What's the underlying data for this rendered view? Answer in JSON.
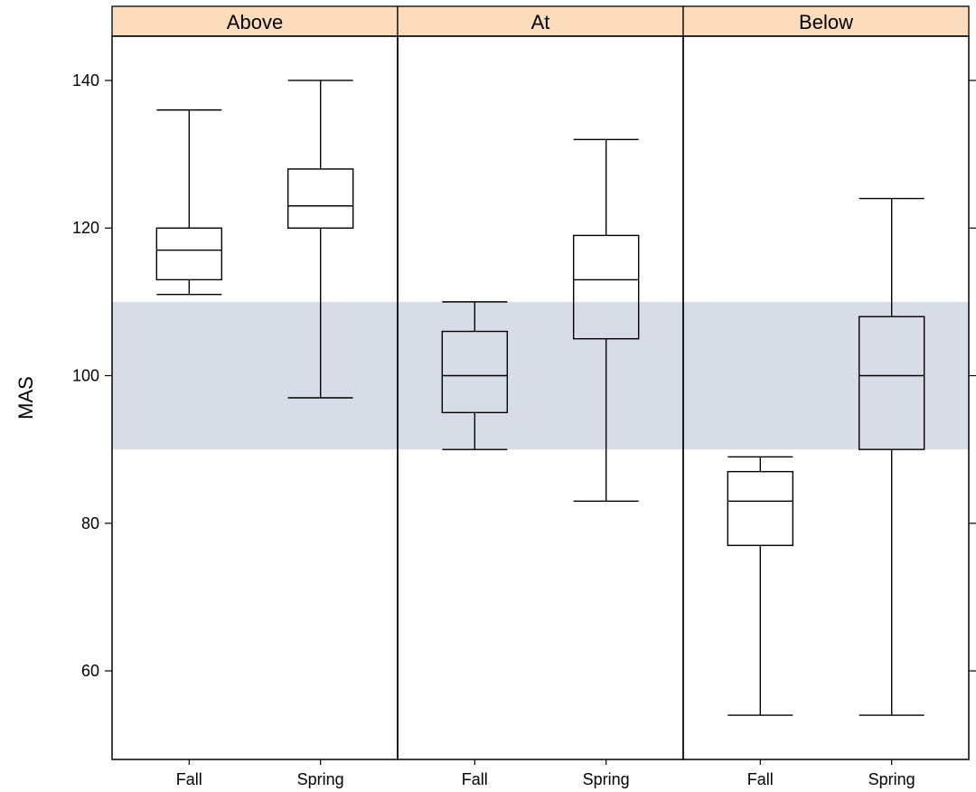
{
  "chart_data": {
    "type": "box",
    "ylabel": "MAS",
    "ylim": [
      48,
      146
    ],
    "yticks": [
      60,
      80,
      100,
      120,
      140
    ],
    "reference_band": {
      "low": 90,
      "high": 110,
      "color": "#d8dce6"
    },
    "strip_color": "#fddcbb",
    "categories": [
      "Fall",
      "Spring"
    ],
    "panels": [
      {
        "label": "Above",
        "boxes": [
          {
            "category": "Fall",
            "min": 111,
            "q1": 113,
            "median": 117,
            "q3": 120,
            "max": 136
          },
          {
            "category": "Spring",
            "min": 97,
            "q1": 120,
            "median": 123,
            "q3": 128,
            "max": 140
          }
        ]
      },
      {
        "label": "At",
        "boxes": [
          {
            "category": "Fall",
            "min": 90,
            "q1": 95,
            "median": 100,
            "q3": 106,
            "max": 110
          },
          {
            "category": "Spring",
            "min": 83,
            "q1": 105,
            "median": 113,
            "q3": 119,
            "max": 132
          }
        ]
      },
      {
        "label": "Below",
        "boxes": [
          {
            "category": "Fall",
            "min": 54,
            "q1": 77,
            "median": 83,
            "q3": 87,
            "max": 89
          },
          {
            "category": "Spring",
            "min": 54,
            "q1": 90,
            "median": 100,
            "q3": 108,
            "max": 124
          }
        ]
      }
    ]
  }
}
